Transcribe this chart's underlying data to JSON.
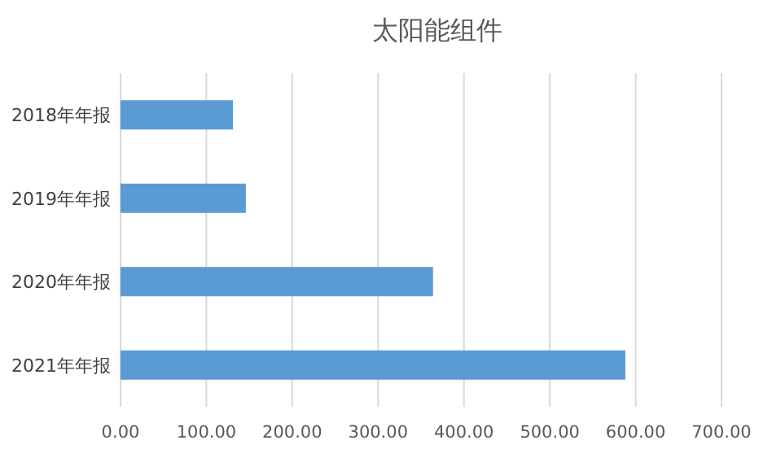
{
  "chart_data": {
    "type": "bar",
    "orientation": "horizontal",
    "title": "太阳能组件",
    "categories": [
      "2018年年报",
      "2019年年报",
      "2020年年报",
      "2021年年报"
    ],
    "series": [
      {
        "color": "#5b9bd5",
        "values": [
          131,
          146,
          364,
          588
        ]
      }
    ],
    "xlim": [
      0,
      700
    ],
    "xticks": [
      {
        "value": 0,
        "label": "0.00"
      },
      {
        "value": 100,
        "label": "100.00"
      },
      {
        "value": 200,
        "label": "200.00"
      },
      {
        "value": 300,
        "label": "300.00"
      },
      {
        "value": 400,
        "label": "400.00"
      },
      {
        "value": 500,
        "label": "500.00"
      },
      {
        "value": 600,
        "label": "600.00"
      },
      {
        "value": 700,
        "label": "700.00"
      }
    ],
    "grid": "x"
  }
}
